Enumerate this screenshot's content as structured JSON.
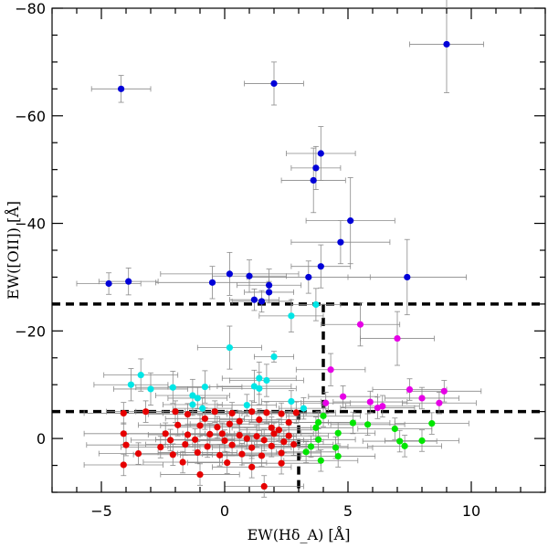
{
  "chart_data": {
    "type": "scatter",
    "title": "",
    "xlabel": "EW(Hδ_A) [Å]",
    "ylabel": "EW([OII]) [Å]",
    "xlim": [
      -7,
      13
    ],
    "ylim": [
      10,
      -80
    ],
    "x_ticks": [
      -5,
      0,
      5,
      10
    ],
    "x_tick_labels": [
      "−5",
      "0",
      "5",
      "10"
    ],
    "y_ticks": [
      -80,
      -60,
      -40,
      -20,
      0
    ],
    "y_tick_labels": [
      "−80",
      "−60",
      "−40",
      "−20",
      "0"
    ],
    "grid": false,
    "boundaries": [
      {
        "name": "upper-threshold",
        "y": -25,
        "x_from": -7,
        "x_to": 13
      },
      {
        "name": "lower-threshold",
        "y": -5,
        "x_from": -7,
        "x_to": 13
      },
      {
        "name": "hdelta-threshold-upper",
        "x": 4,
        "y_from": -25,
        "y_to": -5
      },
      {
        "name": "hdelta-threshold-lower",
        "x": 3,
        "y_from": -5,
        "y_to": 10
      }
    ],
    "series": [
      {
        "name": "blue",
        "color": "#0000d8",
        "points": [
          {
            "x": -4.2,
            "y": -65,
            "xerr": 1.2,
            "yerr": 2.5
          },
          {
            "x": 2.0,
            "y": -66,
            "xerr": 1.2,
            "yerr": 4
          },
          {
            "x": 9.0,
            "y": -73.3,
            "xerr": 1.5,
            "yerr": 9
          },
          {
            "x": 3.9,
            "y": -53,
            "xerr": 1.4,
            "yerr": 5
          },
          {
            "x": 3.6,
            "y": -48,
            "xerr": 1.3,
            "yerr": 6
          },
          {
            "x": 3.7,
            "y": -50.3,
            "xerr": 1.0,
            "yerr": 4
          },
          {
            "x": 5.1,
            "y": -40.5,
            "xerr": 1.8,
            "yerr": 8
          },
          {
            "x": 4.7,
            "y": -36.5,
            "xerr": 2.0,
            "yerr": 4
          },
          {
            "x": 7.4,
            "y": -30,
            "xerr": 2.4,
            "yerr": 7
          },
          {
            "x": 3.4,
            "y": -30,
            "xerr": 2.5,
            "yerr": 3
          },
          {
            "x": 3.9,
            "y": -32,
            "xerr": 1.2,
            "yerr": 4
          },
          {
            "x": 0.2,
            "y": -30.6,
            "xerr": 2.8,
            "yerr": 4
          },
          {
            "x": 1.0,
            "y": -30.2,
            "xerr": 1.5,
            "yerr": 3
          },
          {
            "x": -4.7,
            "y": -28.8,
            "xerr": 1.3,
            "yerr": 2
          },
          {
            "x": -3.9,
            "y": -29.2,
            "xerr": 1.2,
            "yerr": 2.5
          },
          {
            "x": -0.5,
            "y": -29.0,
            "xerr": 2.3,
            "yerr": 3
          },
          {
            "x": 1.8,
            "y": -28.5,
            "xerr": 1.3,
            "yerr": 3
          },
          {
            "x": 1.8,
            "y": -27.2,
            "xerr": 1.0,
            "yerr": 2
          },
          {
            "x": 1.2,
            "y": -25.8,
            "xerr": 1.0,
            "yerr": 2
          },
          {
            "x": 1.5,
            "y": -25.5,
            "xerr": 1.2,
            "yerr": 2
          }
        ]
      },
      {
        "name": "cyan",
        "color": "#00e6e6",
        "points": [
          {
            "x": 2.7,
            "y": -22.8,
            "xerr": 1.3,
            "yerr": 3
          },
          {
            "x": 3.7,
            "y": -24.9,
            "xerr": 1.0,
            "yerr": 3
          },
          {
            "x": 0.2,
            "y": -16.9,
            "xerr": 1.3,
            "yerr": 4
          },
          {
            "x": 2.0,
            "y": -15.2,
            "xerr": 0.8,
            "yerr": 1
          },
          {
            "x": -3.4,
            "y": -11.8,
            "xerr": 1.5,
            "yerr": 3
          },
          {
            "x": -3.8,
            "y": -10.0,
            "xerr": 1.5,
            "yerr": 3
          },
          {
            "x": -3.0,
            "y": -9.2,
            "xerr": 1.5,
            "yerr": 3
          },
          {
            "x": -2.1,
            "y": -9.5,
            "xerr": 1.5,
            "yerr": 3
          },
          {
            "x": -0.8,
            "y": -9.6,
            "xerr": 1.5,
            "yerr": 3
          },
          {
            "x": 1.4,
            "y": -11.2,
            "xerr": 1.5,
            "yerr": 3
          },
          {
            "x": 1.7,
            "y": -10.8,
            "xerr": 1.5,
            "yerr": 3
          },
          {
            "x": 1.2,
            "y": -9.7,
            "xerr": 1.5,
            "yerr": 3
          },
          {
            "x": 1.4,
            "y": -9.3,
            "xerr": 1.5,
            "yerr": 3
          },
          {
            "x": -1.3,
            "y": -8.0,
            "xerr": 1.5,
            "yerr": 3
          },
          {
            "x": -1.1,
            "y": -7.5,
            "xerr": 1.2,
            "yerr": 2
          },
          {
            "x": -1.3,
            "y": -6.3,
            "xerr": 1.2,
            "yerr": 2
          },
          {
            "x": -0.9,
            "y": -5.6,
            "xerr": 1.2,
            "yerr": 2
          },
          {
            "x": 0.9,
            "y": -6.2,
            "xerr": 1.2,
            "yerr": 2
          },
          {
            "x": 2.7,
            "y": -6.9,
            "xerr": 1.2,
            "yerr": 2
          },
          {
            "x": 3.2,
            "y": -5.6,
            "xerr": 1.0,
            "yerr": 2
          }
        ]
      },
      {
        "name": "magenta",
        "color": "#e600e6",
        "points": [
          {
            "x": 5.5,
            "y": -21.2,
            "xerr": 1.6,
            "yerr": 4
          },
          {
            "x": 7.0,
            "y": -18.6,
            "xerr": 1.5,
            "yerr": 5
          },
          {
            "x": 4.3,
            "y": -12.8,
            "xerr": 1.4,
            "yerr": 3
          },
          {
            "x": 4.8,
            "y": -7.8,
            "xerr": 1.4,
            "yerr": 2
          },
          {
            "x": 7.5,
            "y": -9.1,
            "xerr": 1.5,
            "yerr": 2
          },
          {
            "x": 8.9,
            "y": -8.8,
            "xerr": 1.5,
            "yerr": 2
          },
          {
            "x": 8.0,
            "y": -7.5,
            "xerr": 1.5,
            "yerr": 2
          },
          {
            "x": 5.9,
            "y": -6.8,
            "xerr": 1.5,
            "yerr": 2
          },
          {
            "x": 6.4,
            "y": -6.0,
            "xerr": 1.5,
            "yerr": 2
          },
          {
            "x": 8.7,
            "y": -6.6,
            "xerr": 1.5,
            "yerr": 2
          },
          {
            "x": 4.1,
            "y": -6.6,
            "xerr": 1.0,
            "yerr": 2
          },
          {
            "x": 6.2,
            "y": -5.7,
            "xerr": 1.5,
            "yerr": 2
          }
        ]
      },
      {
        "name": "green",
        "color": "#00e600",
        "points": [
          {
            "x": 4.0,
            "y": -4.2,
            "xerr": 1.5,
            "yerr": 2
          },
          {
            "x": 3.8,
            "y": -3.0,
            "xerr": 1.5,
            "yerr": 2
          },
          {
            "x": 5.2,
            "y": -2.9,
            "xerr": 1.5,
            "yerr": 2
          },
          {
            "x": 5.8,
            "y": -2.6,
            "xerr": 1.5,
            "yerr": 2
          },
          {
            "x": 3.7,
            "y": -2.0,
            "xerr": 1.5,
            "yerr": 2
          },
          {
            "x": 4.6,
            "y": -1.0,
            "xerr": 1.5,
            "yerr": 2
          },
          {
            "x": 6.9,
            "y": -1.8,
            "xerr": 1.5,
            "yerr": 2
          },
          {
            "x": 8.4,
            "y": -2.8,
            "xerr": 1.5,
            "yerr": 2
          },
          {
            "x": 7.1,
            "y": 0.5,
            "xerr": 1.5,
            "yerr": 2
          },
          {
            "x": 8.0,
            "y": 0.4,
            "xerr": 1.5,
            "yerr": 2
          },
          {
            "x": 7.3,
            "y": 1.4,
            "xerr": 1.5,
            "yerr": 2
          },
          {
            "x": 3.8,
            "y": 0.2,
            "xerr": 1.5,
            "yerr": 2
          },
          {
            "x": 3.5,
            "y": 1.5,
            "xerr": 1.5,
            "yerr": 2
          },
          {
            "x": 4.5,
            "y": 1.7,
            "xerr": 1.5,
            "yerr": 2
          },
          {
            "x": 4.6,
            "y": 3.3,
            "xerr": 1.5,
            "yerr": 2
          },
          {
            "x": 3.9,
            "y": 4.1,
            "xerr": 1.5,
            "yerr": 2
          },
          {
            "x": 3.3,
            "y": 2.5,
            "xerr": 1.2,
            "yerr": 2
          }
        ]
      },
      {
        "name": "red",
        "color": "#e60000",
        "points": [
          {
            "x": -4.1,
            "y": -4.7,
            "xerr": 1.6,
            "yerr": 2
          },
          {
            "x": -3.2,
            "y": -5.0,
            "xerr": 1.6,
            "yerr": 2
          },
          {
            "x": -2.0,
            "y": -5.0,
            "xerr": 1.6,
            "yerr": 2
          },
          {
            "x": -1.5,
            "y": -4.5,
            "xerr": 1.6,
            "yerr": 2
          },
          {
            "x": -0.4,
            "y": -5.0,
            "xerr": 1.6,
            "yerr": 2
          },
          {
            "x": 0.3,
            "y": -4.7,
            "xerr": 1.6,
            "yerr": 2
          },
          {
            "x": 1.1,
            "y": -5.0,
            "xerr": 1.6,
            "yerr": 2
          },
          {
            "x": 1.7,
            "y": -4.8,
            "xerr": 1.6,
            "yerr": 2
          },
          {
            "x": 2.3,
            "y": -4.6,
            "xerr": 1.6,
            "yerr": 2
          },
          {
            "x": 2.9,
            "y": -4.8,
            "xerr": 1.6,
            "yerr": 2
          },
          {
            "x": -0.8,
            "y": -3.7,
            "xerr": 1.6,
            "yerr": 2
          },
          {
            "x": 0.6,
            "y": -3.2,
            "xerr": 1.6,
            "yerr": 2
          },
          {
            "x": 1.4,
            "y": -3.5,
            "xerr": 1.6,
            "yerr": 2
          },
          {
            "x": 2.6,
            "y": -3.0,
            "xerr": 1.6,
            "yerr": 2
          },
          {
            "x": -1.9,
            "y": -2.5,
            "xerr": 1.6,
            "yerr": 2
          },
          {
            "x": -1.0,
            "y": -2.4,
            "xerr": 1.6,
            "yerr": 2
          },
          {
            "x": -0.3,
            "y": -2.1,
            "xerr": 1.6,
            "yerr": 2
          },
          {
            "x": 0.2,
            "y": -2.7,
            "xerr": 1.6,
            "yerr": 2
          },
          {
            "x": 1.9,
            "y": -2.0,
            "xerr": 1.6,
            "yerr": 2
          },
          {
            "x": 2.2,
            "y": -1.6,
            "xerr": 1.6,
            "yerr": 2
          },
          {
            "x": -4.1,
            "y": -0.9,
            "xerr": 1.6,
            "yerr": 2
          },
          {
            "x": -2.4,
            "y": -0.9,
            "xerr": 1.6,
            "yerr": 2
          },
          {
            "x": -1.5,
            "y": -0.7,
            "xerr": 1.6,
            "yerr": 2
          },
          {
            "x": -0.6,
            "y": -0.8,
            "xerr": 1.6,
            "yerr": 2
          },
          {
            "x": -0.1,
            "y": -0.9,
            "xerr": 1.6,
            "yerr": 2
          },
          {
            "x": 0.6,
            "y": -0.6,
            "xerr": 1.6,
            "yerr": 2
          },
          {
            "x": 1.3,
            "y": -0.4,
            "xerr": 1.6,
            "yerr": 2
          },
          {
            "x": 2.0,
            "y": -0.9,
            "xerr": 1.6,
            "yerr": 2
          },
          {
            "x": 2.6,
            "y": -0.5,
            "xerr": 1.6,
            "yerr": 2
          },
          {
            "x": -2.2,
            "y": 0.3,
            "xerr": 1.6,
            "yerr": 2
          },
          {
            "x": -1.2,
            "y": 0.2,
            "xerr": 1.6,
            "yerr": 2
          },
          {
            "x": 0.0,
            "y": 0.4,
            "xerr": 1.6,
            "yerr": 2
          },
          {
            "x": 0.9,
            "y": 0.0,
            "xerr": 1.6,
            "yerr": 2
          },
          {
            "x": 1.6,
            "y": 0.3,
            "xerr": 1.6,
            "yerr": 2
          },
          {
            "x": 2.4,
            "y": 0.6,
            "xerr": 1.6,
            "yerr": 2
          },
          {
            "x": -4.0,
            "y": 1.2,
            "xerr": 1.6,
            "yerr": 2
          },
          {
            "x": -2.6,
            "y": 1.6,
            "xerr": 1.6,
            "yerr": 2
          },
          {
            "x": -1.6,
            "y": 1.1,
            "xerr": 1.6,
            "yerr": 2
          },
          {
            "x": -0.7,
            "y": 1.5,
            "xerr": 1.6,
            "yerr": 2
          },
          {
            "x": 0.3,
            "y": 1.2,
            "xerr": 1.6,
            "yerr": 2
          },
          {
            "x": 1.1,
            "y": 1.7,
            "xerr": 1.6,
            "yerr": 2
          },
          {
            "x": 1.9,
            "y": 1.4,
            "xerr": 1.6,
            "yerr": 2
          },
          {
            "x": 2.8,
            "y": 1.1,
            "xerr": 1.6,
            "yerr": 2
          },
          {
            "x": -3.5,
            "y": 2.8,
            "xerr": 1.6,
            "yerr": 2
          },
          {
            "x": -2.1,
            "y": 3.0,
            "xerr": 1.6,
            "yerr": 2
          },
          {
            "x": -1.1,
            "y": 2.6,
            "xerr": 1.6,
            "yerr": 2
          },
          {
            "x": -0.2,
            "y": 3.1,
            "xerr": 1.6,
            "yerr": 2
          },
          {
            "x": 0.7,
            "y": 2.9,
            "xerr": 1.6,
            "yerr": 2
          },
          {
            "x": 1.5,
            "y": 3.2,
            "xerr": 1.6,
            "yerr": 2
          },
          {
            "x": 2.3,
            "y": 2.7,
            "xerr": 1.6,
            "yerr": 2
          },
          {
            "x": -4.1,
            "y": 4.9,
            "xerr": 1.6,
            "yerr": 2
          },
          {
            "x": -1.7,
            "y": 4.4,
            "xerr": 1.6,
            "yerr": 2
          },
          {
            "x": 0.1,
            "y": 4.5,
            "xerr": 1.6,
            "yerr": 2
          },
          {
            "x": 1.1,
            "y": 5.3,
            "xerr": 1.6,
            "yerr": 2
          },
          {
            "x": 2.3,
            "y": 4.6,
            "xerr": 1.6,
            "yerr": 2
          },
          {
            "x": -1.0,
            "y": 6.7,
            "xerr": 1.6,
            "yerr": 2
          },
          {
            "x": 1.6,
            "y": 8.9,
            "xerr": 1.6,
            "yerr": 2
          }
        ]
      }
    ]
  }
}
